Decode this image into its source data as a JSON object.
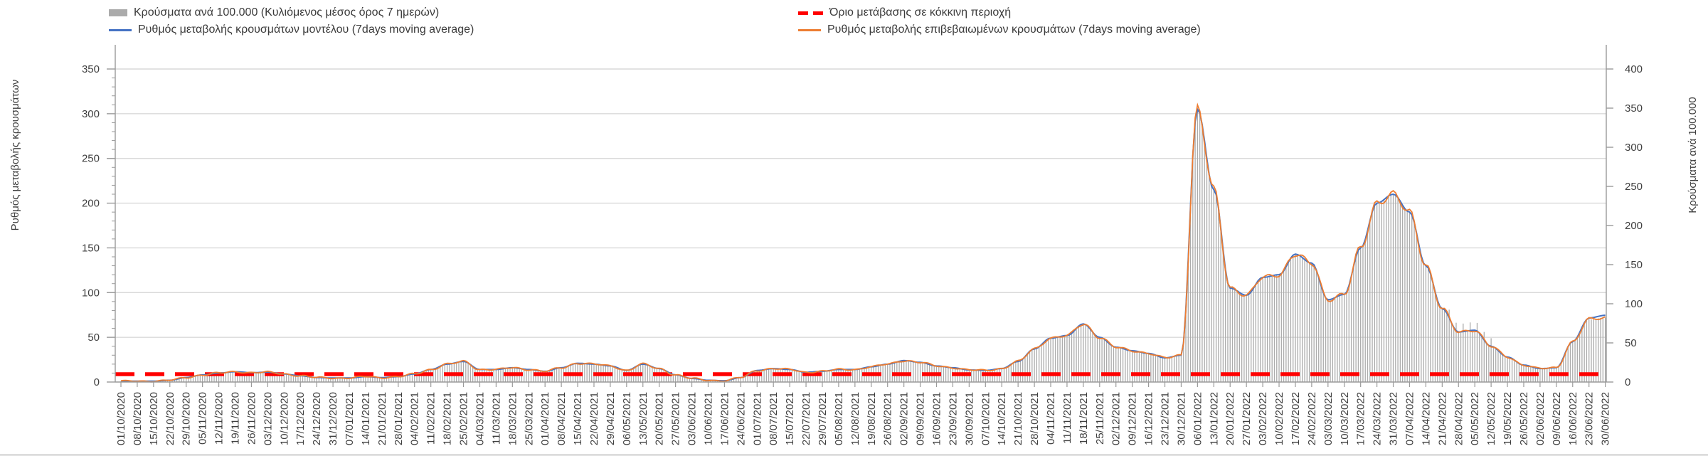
{
  "legend": {
    "items": [
      {
        "label": "Κρούσματα ανά 100.000 (Κυλιόμενος μέσος όρος 7 ημερών)",
        "swatch": "bar",
        "color": "#ababab"
      },
      {
        "label": "Ρυθμός μεταβολής κρουσμάτων μοντέλου (7days moving average)",
        "swatch": "line",
        "color": "#4472c4"
      },
      {
        "label": "Όριο μετάβασης σε κόκκινη περιοχή",
        "swatch": "dashes",
        "color": "#ff0000"
      },
      {
        "label": "Ρυθμός μεταβολής επιβεβαιωμένων κρουσμάτων (7days moving average)",
        "swatch": "line",
        "color": "#ed7d31"
      }
    ]
  },
  "chart_data": {
    "type": "bar+line combo, dual axis",
    "title": "",
    "x_labels": [
      "01/10/2020",
      "08/10/2020",
      "15/10/2020",
      "22/10/2020",
      "29/10/2020",
      "05/11/2020",
      "12/11/2020",
      "19/11/2020",
      "26/11/2020",
      "03/12/2020",
      "10/12/2020",
      "17/12/2020",
      "24/12/2020",
      "31/12/2020",
      "07/01/2021",
      "14/01/2021",
      "21/01/2021",
      "28/01/2021",
      "04/02/2021",
      "11/02/2021",
      "18/02/2021",
      "25/02/2021",
      "04/03/2021",
      "11/03/2021",
      "18/03/2021",
      "25/03/2021",
      "01/04/2021",
      "08/04/2021",
      "15/04/2021",
      "22/04/2021",
      "29/04/2021",
      "06/05/2021",
      "13/05/2021",
      "20/05/2021",
      "27/05/2021",
      "03/06/2021",
      "10/06/2021",
      "17/06/2021",
      "24/06/2021",
      "01/07/2021",
      "08/07/2021",
      "15/07/2021",
      "22/07/2021",
      "29/07/2021",
      "05/08/2021",
      "12/08/2021",
      "19/08/2021",
      "26/08/2021",
      "02/09/2021",
      "09/09/2021",
      "16/09/2021",
      "23/09/2021",
      "30/09/2021",
      "07/10/2021",
      "14/10/2021",
      "21/10/2021",
      "28/10/2021",
      "04/11/2021",
      "11/11/2021",
      "18/11/2021",
      "25/11/2021",
      "02/12/2021",
      "09/12/2021",
      "16/12/2021",
      "23/12/2021",
      "30/12/2021",
      "06/01/2022",
      "13/01/2022",
      "20/01/2022",
      "27/01/2022",
      "03/02/2022",
      "10/02/2022",
      "17/02/2022",
      "24/02/2022",
      "03/03/2022",
      "10/03/2022",
      "17/03/2022",
      "24/03/2022",
      "31/03/2022",
      "07/04/2022",
      "14/04/2022",
      "21/04/2022",
      "28/04/2022",
      "05/05/2022",
      "12/05/2022",
      "19/05/2022",
      "26/05/2022",
      "02/06/2022",
      "09/06/2022",
      "16/06/2022",
      "23/06/2022",
      "30/06/2022"
    ],
    "weekly_values_left_axis": [
      1,
      1,
      1,
      2,
      5,
      8,
      10,
      11.5,
      10.5,
      11,
      9,
      7,
      5,
      4.5,
      4.5,
      6,
      5,
      6,
      9,
      14,
      20,
      23,
      14,
      14,
      16,
      14,
      12,
      16,
      21,
      20,
      18,
      13,
      20,
      15,
      8,
      4,
      2,
      1.5,
      5,
      13,
      15,
      14,
      11,
      12,
      14,
      14,
      17,
      20,
      24,
      22,
      18,
      16,
      13.5,
      13,
      15,
      23,
      37,
      49,
      52,
      65,
      50,
      39,
      35,
      32,
      27,
      30,
      305,
      215,
      105,
      97,
      117,
      120,
      143,
      133,
      92,
      98,
      150,
      200,
      210,
      190,
      130,
      82,
      56,
      58,
      40,
      28,
      19,
      15,
      16,
      45,
      70,
      72
    ],
    "series": [
      {
        "name": "Κρούσματα ανά 100.000 (Κυλιόμενος μέσος όρος 7 ημερών)",
        "type": "bar",
        "axis": "right",
        "color": "#ababab",
        "note": "daily thin bars; tops follow weekly_values_left_axis (right-axis value = left value × 400/350)"
      },
      {
        "name": "Ρυθμός μεταβολής κρουσμάτων μοντέλου (7days moving average)",
        "type": "line",
        "axis": "left",
        "color": "#4472c4"
      },
      {
        "name": "Ρυθμός μεταβολής επιβεβαιωμένων κρουσμάτων (7days moving average)",
        "type": "line",
        "axis": "left",
        "color": "#ed7d31"
      }
    ],
    "threshold": {
      "name": "Όριο μετάβασης σε κόκκινη περιοχή",
      "color": "#ff0000",
      "style": "dashed",
      "right_axis_value": 10
    },
    "axes": {
      "left": {
        "title": "Ρυθμός μεταβολής κρουσμάτων",
        "min": 0,
        "max": 350,
        "step": 50,
        "ticks": [
          "0",
          "50",
          "100",
          "150",
          "200",
          "250",
          "300",
          "350"
        ]
      },
      "right": {
        "title": "Κρούσματα ανά 100.000",
        "min": 0,
        "max": 400,
        "step": 50,
        "ticks": [
          "0",
          "50",
          "100",
          "150",
          "200",
          "250",
          "300",
          "350",
          "400"
        ]
      }
    },
    "grid": "horizontal light gray lines at left-axis 50..350",
    "legend_position": "top, two columns",
    "peaks_annotation": "max ≈ 305 (left axis) on 06/01/2022; secondary peaks ≈ 65 on 18/11/2021 and ≈ 210 on 31/03/2022"
  }
}
